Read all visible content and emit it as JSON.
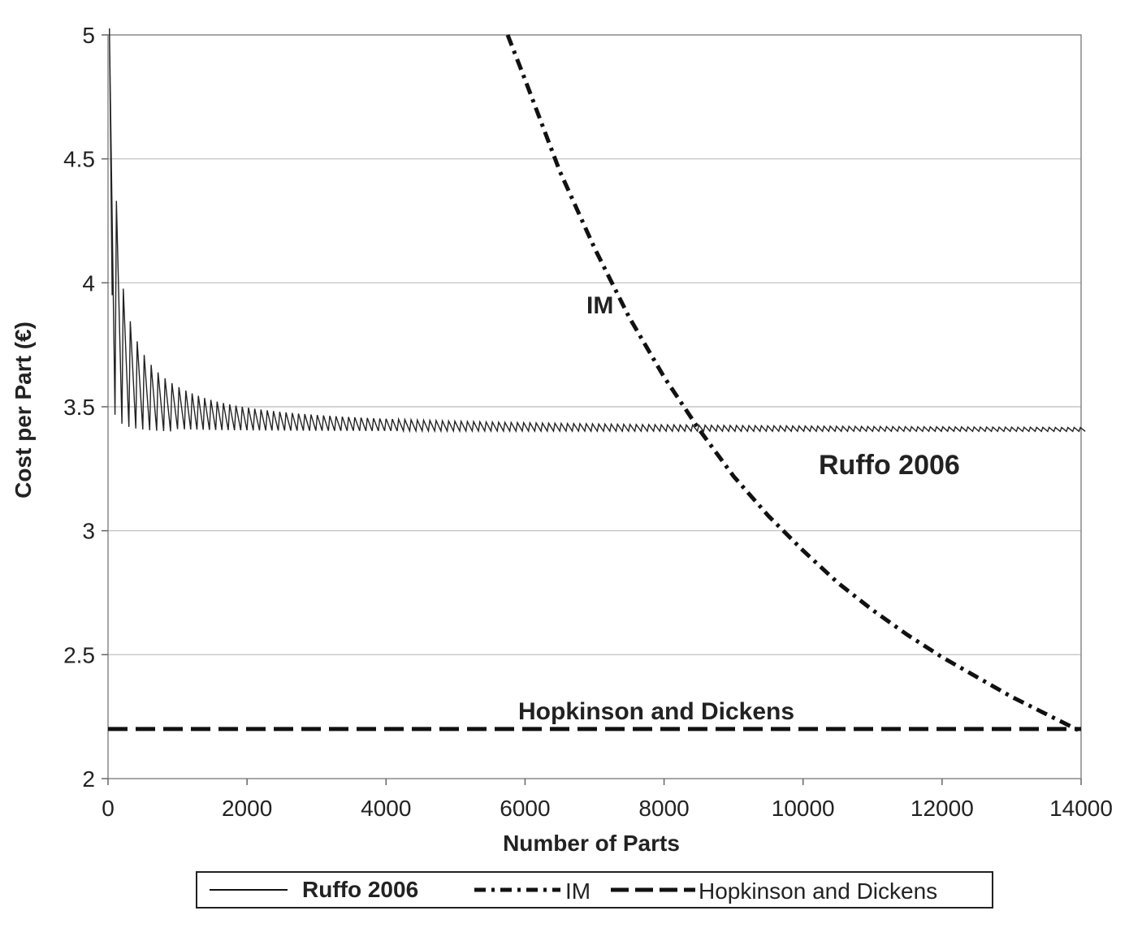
{
  "chart_data": {
    "type": "line",
    "title": "",
    "xlabel": "Number of Parts",
    "ylabel": "Cost per Part (€)",
    "xlim": [
      0,
      14000
    ],
    "ylim": [
      2,
      5
    ],
    "x_ticks": [
      "0",
      "2000",
      "4000",
      "6000",
      "8000",
      "10000",
      "12000",
      "14000"
    ],
    "y_ticks": [
      "2",
      "2.5",
      "3",
      "3.5",
      "4",
      "4.5",
      "5"
    ],
    "grid": "horizontal",
    "legend_position": "bottom",
    "annotations": {
      "im": "IM",
      "ruffo": "Ruffo 2006",
      "hopkinson": "Hopkinson and Dickens"
    },
    "series": [
      {
        "name": "Ruffo 2006",
        "style": "solid-thin",
        "description_points": {
          "x": [
            100,
            150,
            250,
            300,
            400,
            450,
            550,
            650,
            750,
            850,
            950,
            1100,
            1300,
            1500,
            1800,
            2000,
            2700,
            3600,
            4500,
            5400,
            6300,
            7200,
            8100,
            9000,
            10800,
            12600,
            14000
          ],
          "y": [
            5.05,
            3.95,
            4.45,
            3.63,
            4.07,
            3.55,
            3.86,
            3.48,
            3.76,
            3.44,
            3.72,
            3.45,
            3.6,
            3.42,
            3.55,
            3.42,
            3.48,
            3.42,
            3.44,
            3.41,
            3.42,
            3.4,
            3.42,
            3.4,
            3.41,
            3.4,
            3.4
          ]
        }
      },
      {
        "name": "IM",
        "style": "dash-dot",
        "x": [
          5750,
          6000,
          6500,
          7000,
          7500,
          8000,
          8500,
          9000,
          9500,
          10000,
          10500,
          11000,
          11500,
          12000,
          12500,
          13000,
          13500,
          14000
        ],
        "y": [
          5.0,
          4.82,
          4.45,
          4.14,
          3.86,
          3.62,
          3.41,
          3.22,
          3.06,
          2.92,
          2.79,
          2.68,
          2.58,
          2.49,
          2.41,
          2.33,
          2.26,
          2.19
        ]
      },
      {
        "name": "Hopkinson and Dickens",
        "style": "dashed",
        "x": [
          0,
          14000
        ],
        "y": [
          2.2,
          2.2
        ]
      }
    ],
    "legend": [
      "Ruffo 2006",
      "IM",
      "Hopkinson and Dickens"
    ]
  }
}
